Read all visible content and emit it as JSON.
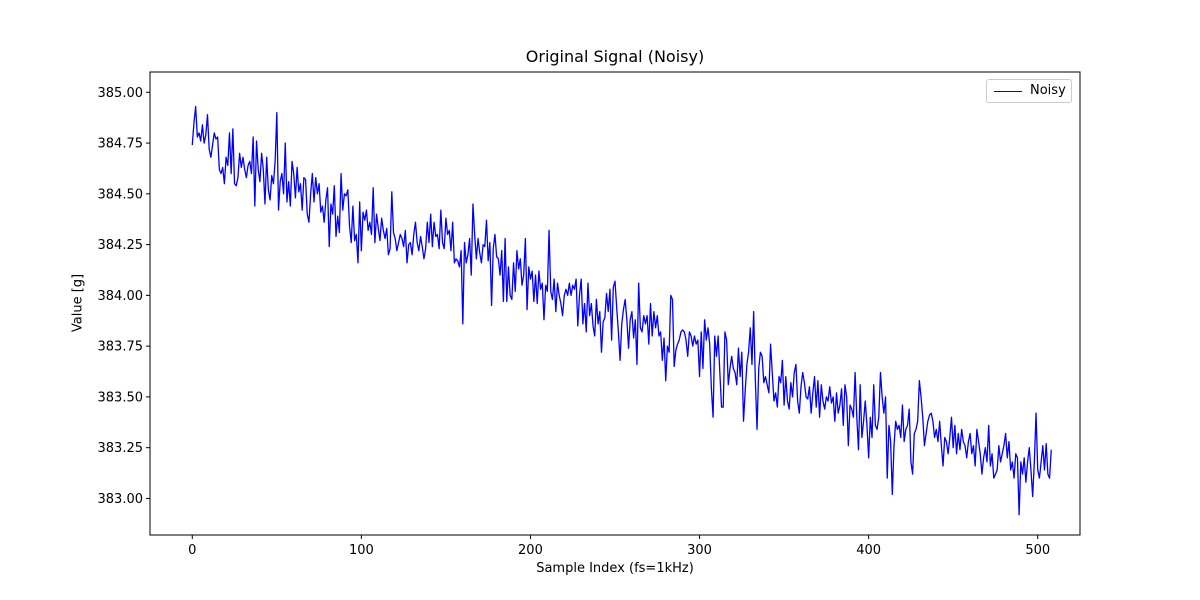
{
  "chart_data": {
    "type": "line",
    "title": "Original Signal (Noisy)",
    "xlabel": "Sample Index (fs=1kHz)",
    "ylabel": "Value [g]",
    "xlim": [
      -25,
      525
    ],
    "ylim": [
      382.82,
      385.1
    ],
    "xticks": [
      0,
      100,
      200,
      300,
      400,
      500
    ],
    "xtick_labels": [
      "0",
      "100",
      "200",
      "300",
      "400",
      "500"
    ],
    "yticks": [
      383.0,
      383.25,
      383.5,
      383.75,
      384.0,
      384.25,
      384.5,
      384.75,
      385.0
    ],
    "ytick_labels": [
      "383.00",
      "383.25",
      "383.50",
      "383.75",
      "384.00",
      "384.25",
      "384.50",
      "384.75",
      "385.00"
    ],
    "grid": false,
    "legend_position": "upper right",
    "series": [
      {
        "name": "Noisy",
        "color": "#0000ff",
        "x_start": 0,
        "x_step": 1,
        "trend": {
          "start": 384.78,
          "end": 383.15
        },
        "noise_amplitude": 0.22,
        "values": [
          384.74,
          384.85,
          384.93,
          384.78,
          384.8,
          384.76,
          384.84,
          384.75,
          384.79,
          384.89,
          384.72,
          384.68,
          384.74,
          384.8,
          384.77,
          384.78,
          384.62,
          384.6,
          384.63,
          384.55,
          384.68,
          384.64,
          384.8,
          384.6,
          384.82,
          384.55,
          384.54,
          384.58,
          384.7,
          384.63,
          384.68,
          384.62,
          384.58,
          384.64,
          384.66,
          384.6,
          384.78,
          384.44,
          384.76,
          384.62,
          384.56,
          384.7,
          384.62,
          384.45,
          384.68,
          384.52,
          384.47,
          384.59,
          384.55,
          384.66,
          384.9,
          384.42,
          384.56,
          384.6,
          384.5,
          384.75,
          384.46,
          384.56,
          384.44,
          384.66,
          384.6,
          384.48,
          384.63,
          384.51,
          384.55,
          384.42,
          384.58,
          384.57,
          384.4,
          384.36,
          384.5,
          384.6,
          384.46,
          384.58,
          384.5,
          384.55,
          384.41,
          384.44,
          384.36,
          384.47,
          384.53,
          384.24,
          384.45,
          384.4,
          384.54,
          384.29,
          384.39,
          384.31,
          384.6,
          384.42,
          384.5,
          384.49,
          384.52,
          384.34,
          384.26,
          384.44,
          384.27,
          384.3,
          384.16,
          384.46,
          384.22,
          384.41,
          384.37,
          384.42,
          384.32,
          384.36,
          384.3,
          384.53,
          384.26,
          384.4,
          384.33,
          384.27,
          384.38,
          384.32,
          384.28,
          384.33,
          384.2,
          384.23,
          384.51,
          384.31,
          384.28,
          384.22,
          384.26,
          384.3,
          384.28,
          384.24,
          384.32,
          384.16,
          384.25,
          384.26,
          384.2,
          384.3,
          384.36,
          384.26,
          384.22,
          384.29,
          384.24,
          384.18,
          384.23,
          384.36,
          384.26,
          384.4,
          384.24,
          384.36,
          384.29,
          384.3,
          384.23,
          384.42,
          384.26,
          384.23,
          384.38,
          384.3,
          384.32,
          384.22,
          384.36,
          384.16,
          384.18,
          384.17,
          384.14,
          384.22,
          383.86,
          384.26,
          384.16,
          384.2,
          384.28,
          384.1,
          384.45,
          384.3,
          384.18,
          384.28,
          384.21,
          384.16,
          384.25,
          384.24,
          384.37,
          384.17,
          384.26,
          383.95,
          384.23,
          384.3,
          384.19,
          384.18,
          384.1,
          384.22,
          383.97,
          384.28,
          383.97,
          384.14,
          384.0,
          383.98,
          384.16,
          384.02,
          384.22,
          384.13,
          384.18,
          384.05,
          384.1,
          384.28,
          383.93,
          384.14,
          384.08,
          384.12,
          383.97,
          384.1,
          383.96,
          384.12,
          384.03,
          384.06,
          383.88,
          384.05,
          384.02,
          384.32,
          384.02,
          383.98,
          384.08,
          383.92,
          384.06,
          384.0,
          383.96,
          383.9,
          384.0,
          384.03,
          384.0,
          384.06,
          384.0,
          384.05,
          384.03,
          384.08,
          383.85,
          384.0,
          384.08,
          383.86,
          383.96,
          383.82,
          384.06,
          383.9,
          383.96,
          383.85,
          383.8,
          383.98,
          383.86,
          383.92,
          383.72,
          383.87,
          383.89,
          384.01,
          383.92,
          384.03,
          383.78,
          384.04,
          384.07,
          383.94,
          383.82,
          383.68,
          383.86,
          383.93,
          383.98,
          383.88,
          383.74,
          383.88,
          383.92,
          383.79,
          383.88,
          383.66,
          384.06,
          383.84,
          383.82,
          383.9,
          383.86,
          383.9,
          383.76,
          383.96,
          383.8,
          383.92,
          383.84,
          383.9,
          383.8,
          383.82,
          383.68,
          383.79,
          383.58,
          383.75,
          383.72,
          384.0,
          383.98,
          383.65,
          383.73,
          383.76,
          383.78,
          383.82,
          383.83,
          383.82,
          383.78,
          383.7,
          383.82,
          383.8,
          383.75,
          383.8,
          383.76,
          383.78,
          383.6,
          383.82,
          383.64,
          383.88,
          383.78,
          383.84,
          383.76,
          383.54,
          383.4,
          383.8,
          383.7,
          383.8,
          383.62,
          383.45,
          383.45,
          383.82,
          383.78,
          383.56,
          383.64,
          383.7,
          383.64,
          383.62,
          383.56,
          383.74,
          383.6,
          383.72,
          383.38,
          383.53,
          383.66,
          383.72,
          383.84,
          383.66,
          383.92,
          383.58,
          383.34,
          383.64,
          383.72,
          383.7,
          383.57,
          383.6,
          383.56,
          383.52,
          383.76,
          383.62,
          383.48,
          383.52,
          383.45,
          383.6,
          383.57,
          383.68,
          383.46,
          383.6,
          383.48,
          383.44,
          383.57,
          383.5,
          383.62,
          383.66,
          383.48,
          383.42,
          383.55,
          383.62,
          383.57,
          383.5,
          383.49,
          383.55,
          383.42,
          383.52,
          383.6,
          383.45,
          383.58,
          383.4,
          383.56,
          383.48,
          383.44,
          383.5,
          383.48,
          383.55,
          383.47,
          383.5,
          383.38,
          383.52,
          383.42,
          383.46,
          383.54,
          383.36,
          383.56,
          383.5,
          383.26,
          383.46,
          383.44,
          383.4,
          383.62,
          383.4,
          383.24,
          383.56,
          383.3,
          383.38,
          383.48,
          383.36,
          383.2,
          383.4,
          383.3,
          383.56,
          383.36,
          383.34,
          383.4,
          383.62,
          383.5,
          383.42,
          383.5,
          383.1,
          383.36,
          383.28,
          383.02,
          383.26,
          383.38,
          383.34,
          383.36,
          383.3,
          383.46,
          383.28,
          383.34,
          383.36,
          383.44,
          383.18,
          383.12,
          383.32,
          383.34,
          383.38,
          383.58,
          383.5,
          383.4,
          383.26,
          383.32,
          383.38,
          383.41,
          383.42,
          383.38,
          383.3,
          383.34,
          383.28,
          383.38,
          383.26,
          383.16,
          383.3,
          383.28,
          383.22,
          383.3,
          383.4,
          383.25,
          383.36,
          383.22,
          383.32,
          383.24,
          383.34,
          383.28,
          383.26,
          383.2,
          383.28,
          383.32,
          383.22,
          383.26,
          383.16,
          383.34,
          383.28,
          383.22,
          383.12,
          383.2,
          383.25,
          383.18,
          383.36,
          383.16,
          383.22,
          383.1,
          383.12,
          383.14,
          383.26,
          383.18,
          383.22,
          383.26,
          383.32,
          383.2,
          383.28,
          383.14,
          383.18,
          383.1,
          383.22,
          383.2,
          382.92,
          383.18,
          383.12,
          383.2,
          383.08,
          383.18,
          383.25,
          383.14,
          383.01,
          383.18,
          383.42,
          383.14,
          383.1,
          383.18,
          383.26,
          383.14,
          383.27,
          383.12,
          383.1,
          383.24
        ]
      }
    ]
  },
  "legend": {
    "label": "Noisy"
  }
}
